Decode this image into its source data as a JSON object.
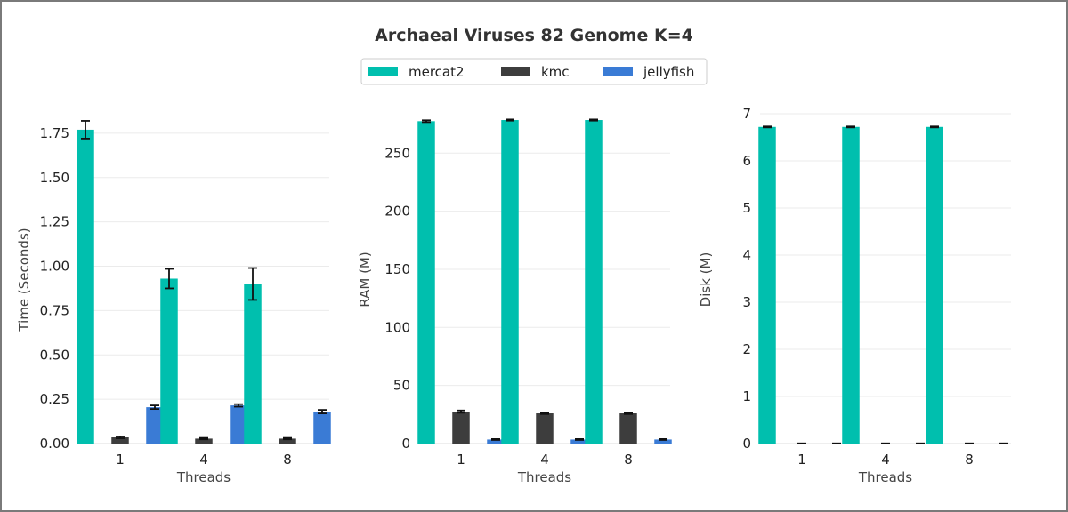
{
  "title": "Archaeal Viruses 82 Genome K=4",
  "legend": {
    "placement": "top-center",
    "entries": [
      {
        "name": "mercat2",
        "color": "#00bfae"
      },
      {
        "name": "kmc",
        "color": "#3d3d3d"
      },
      {
        "name": "jellyfish",
        "color": "#3a7bd5"
      }
    ]
  },
  "chart_data": [
    {
      "type": "bar",
      "xlabel": "Threads",
      "ylabel": "Time (Seconds)",
      "categories": [
        "1",
        "4",
        "8"
      ],
      "ylim": [
        0,
        1.9
      ],
      "yticks": [
        0.0,
        0.25,
        0.5,
        0.75,
        1.0,
        1.25,
        1.5,
        1.75
      ],
      "ytick_labels": [
        "0.00",
        "0.25",
        "0.50",
        "0.75",
        "1.00",
        "1.25",
        "1.50",
        "1.75"
      ],
      "grid": true,
      "series": [
        {
          "name": "mercat2",
          "color": "#00bfae",
          "values": [
            1.77,
            0.93,
            0.9
          ],
          "errors": [
            0.05,
            0.055,
            0.09
          ]
        },
        {
          "name": "kmc",
          "color": "#3d3d3d",
          "values": [
            0.035,
            0.028,
            0.028
          ],
          "errors": [
            0.005,
            0.004,
            0.004
          ]
        },
        {
          "name": "jellyfish",
          "color": "#3a7bd5",
          "values": [
            0.205,
            0.215,
            0.18
          ],
          "errors": [
            0.01,
            0.007,
            0.01
          ]
        }
      ]
    },
    {
      "type": "bar",
      "xlabel": "Threads",
      "ylabel": "RAM (M)",
      "categories": [
        "1",
        "4",
        "8"
      ],
      "ylim": [
        0,
        290
      ],
      "yticks": [
        0,
        50,
        100,
        150,
        200,
        250
      ],
      "ytick_labels": [
        "0",
        "50",
        "100",
        "150",
        "200",
        "250"
      ],
      "grid": true,
      "series": [
        {
          "name": "mercat2",
          "color": "#00bfae",
          "values": [
            277.5,
            278.5,
            278.5
          ],
          "errors": [
            0.8,
            0.5,
            0.5
          ]
        },
        {
          "name": "kmc",
          "color": "#3d3d3d",
          "values": [
            27.5,
            26.0,
            26.0
          ],
          "errors": [
            1.0,
            0.6,
            0.6
          ]
        },
        {
          "name": "jellyfish",
          "color": "#3a7bd5",
          "values": [
            3.5,
            3.5,
            3.5
          ],
          "errors": [
            0.4,
            0.4,
            0.4
          ]
        }
      ]
    },
    {
      "type": "bar",
      "xlabel": "Threads",
      "ylabel": "Disk (M)",
      "categories": [
        "1",
        "4",
        "8"
      ],
      "ylim": [
        0,
        7.15
      ],
      "yticks": [
        0,
        1,
        2,
        3,
        4,
        5,
        6,
        7
      ],
      "ytick_labels": [
        "0",
        "1",
        "2",
        "3",
        "4",
        "5",
        "6",
        "7"
      ],
      "grid": true,
      "series": [
        {
          "name": "mercat2",
          "color": "#00bfae",
          "values": [
            6.72,
            6.72,
            6.72
          ],
          "errors": [
            0.01,
            0.01,
            0.01
          ]
        },
        {
          "name": "kmc",
          "color": "#3d3d3d",
          "values": [
            0,
            0,
            0
          ],
          "errors": [
            0.005,
            0.005,
            0.005
          ]
        },
        {
          "name": "jellyfish",
          "color": "#3a7bd5",
          "values": [
            0,
            0,
            0
          ],
          "errors": [
            0.005,
            0.005,
            0.005
          ]
        }
      ]
    }
  ]
}
